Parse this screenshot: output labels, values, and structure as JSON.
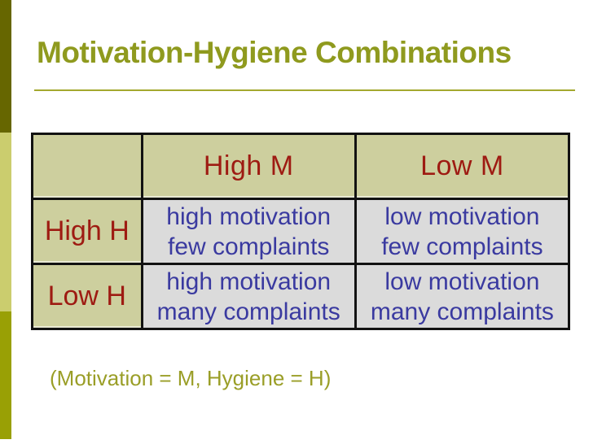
{
  "slide": {
    "title": "Motivation-Hygiene Combinations",
    "caption": "(Motivation = M, Hygiene = H)"
  },
  "table": {
    "header": {
      "corner": "",
      "col1": "High M",
      "col2": "Low M"
    },
    "rows": [
      {
        "label": "High H",
        "cells": [
          {
            "line1": "high motivation",
            "line2": "few complaints"
          },
          {
            "line1": "low motivation",
            "line2": "few complaints"
          }
        ]
      },
      {
        "label": "Low H",
        "cells": [
          {
            "line1": "high motivation",
            "line2": "many complaints"
          },
          {
            "line1": "low motivation",
            "line2": "many complaints"
          }
        ]
      }
    ]
  },
  "colors": {
    "accent_bar_dark": "#666600",
    "accent_bar_light": "#cbcd6e",
    "accent_bar_olive": "#99a005",
    "title_olive": "#8f9a1e",
    "rule_olive": "#a4a82f",
    "caption_olive": "#9a9e27",
    "header_text_maroon": "#9e1b12",
    "cell_text_blue": "#3a3aa0",
    "header_bg_tan": "#cdcf9e",
    "cell_bg_gray": "#dbdbdb",
    "table_border": "#121212"
  }
}
